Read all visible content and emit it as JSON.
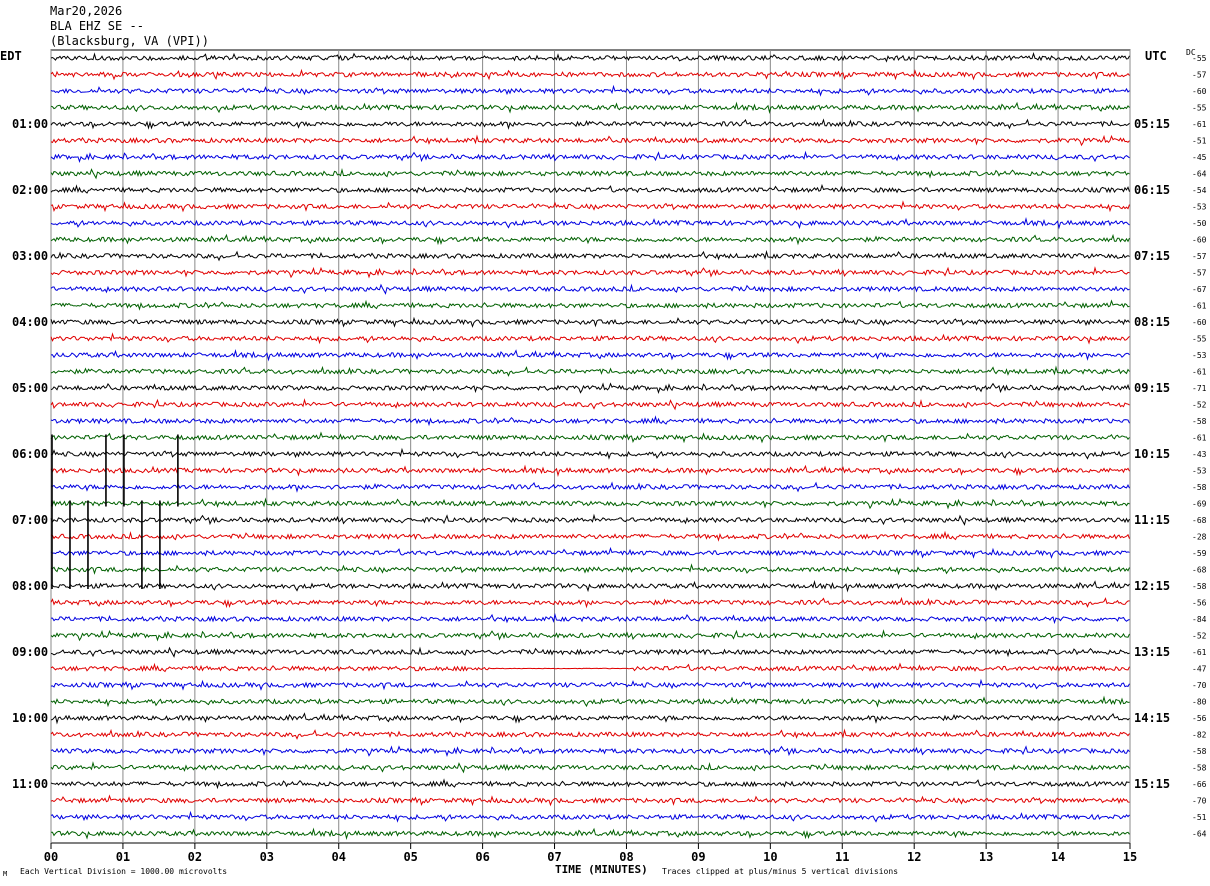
{
  "header": {
    "date": "Mar20,2026",
    "station": "BLA EHZ SE --",
    "location": "(Blacksburg, VA (VPI))"
  },
  "left_tz": "EDT",
  "right_tz": "UTC",
  "dc_label": "DC",
  "footer": {
    "scale_note": "Each Vertical Division = 1000.00 microvolts",
    "xlabel": "TIME (MINUTES)",
    "clip_note": "Traces clipped at plus/minus 5 vertical divisions",
    "corner_mark": "M"
  },
  "colors": {
    "trace": [
      "#000000",
      "#e00000",
      "#0000e0",
      "#006000"
    ],
    "grid": "#888888"
  },
  "chart_data": {
    "type": "line",
    "description_kind": "helicorder",
    "xlabel": "TIME (MINUTES)",
    "xlim": [
      0,
      15
    ],
    "x_ticks": [
      "00",
      "01",
      "02",
      "03",
      "04",
      "05",
      "06",
      "07",
      "08",
      "09",
      "10",
      "11",
      "12",
      "13",
      "14",
      "15"
    ],
    "rows_per_hour": 4,
    "row_count": 48,
    "left_hour_labels": [
      "01:00",
      "02:00",
      "03:00",
      "04:00",
      "05:00",
      "06:00",
      "07:00",
      "08:00",
      "09:00",
      "10:00",
      "11:00"
    ],
    "right_hour_labels": [
      "05:15",
      "06:15",
      "07:15",
      "08:15",
      "09:15",
      "10:15",
      "11:15",
      "12:15",
      "13:15",
      "14:15",
      "15:15"
    ],
    "dc_offsets": [
      -55,
      -57,
      -60,
      -55,
      -61,
      -51,
      -45,
      -64,
      -54,
      -53,
      -50,
      -60,
      -57,
      -57,
      -67,
      -61,
      -60,
      -55,
      -53,
      -61,
      -71,
      -52,
      -58,
      -61,
      -43,
      -53,
      -58,
      -69,
      -68,
      -28,
      -59,
      -68,
      -58,
      -56,
      -84,
      -52,
      -61,
      -47,
      -70,
      -80,
      -56,
      -82,
      -58,
      -58,
      -66,
      -70,
      -51,
      -64
    ],
    "clipped_spikes": [
      {
        "row_start": 23,
        "row_end": 27,
        "minute": 0.0
      },
      {
        "row_start": 23,
        "row_end": 27,
        "minute": 0.75
      },
      {
        "row_start": 23,
        "row_end": 27,
        "minute": 1.0
      },
      {
        "row_start": 23,
        "row_end": 27,
        "minute": 1.75
      },
      {
        "row_start": 27,
        "row_end": 32,
        "minute": 0.0
      },
      {
        "row_start": 27,
        "row_end": 32,
        "minute": 0.25
      },
      {
        "row_start": 27,
        "row_end": 32,
        "minute": 0.5
      },
      {
        "row_start": 27,
        "row_end": 32,
        "minute": 1.25
      },
      {
        "row_start": 27,
        "row_end": 32,
        "minute": 1.5
      }
    ],
    "flat_segments": [
      {
        "row": 37,
        "minute_start": 6.1,
        "minute_end": 8.1
      }
    ]
  }
}
